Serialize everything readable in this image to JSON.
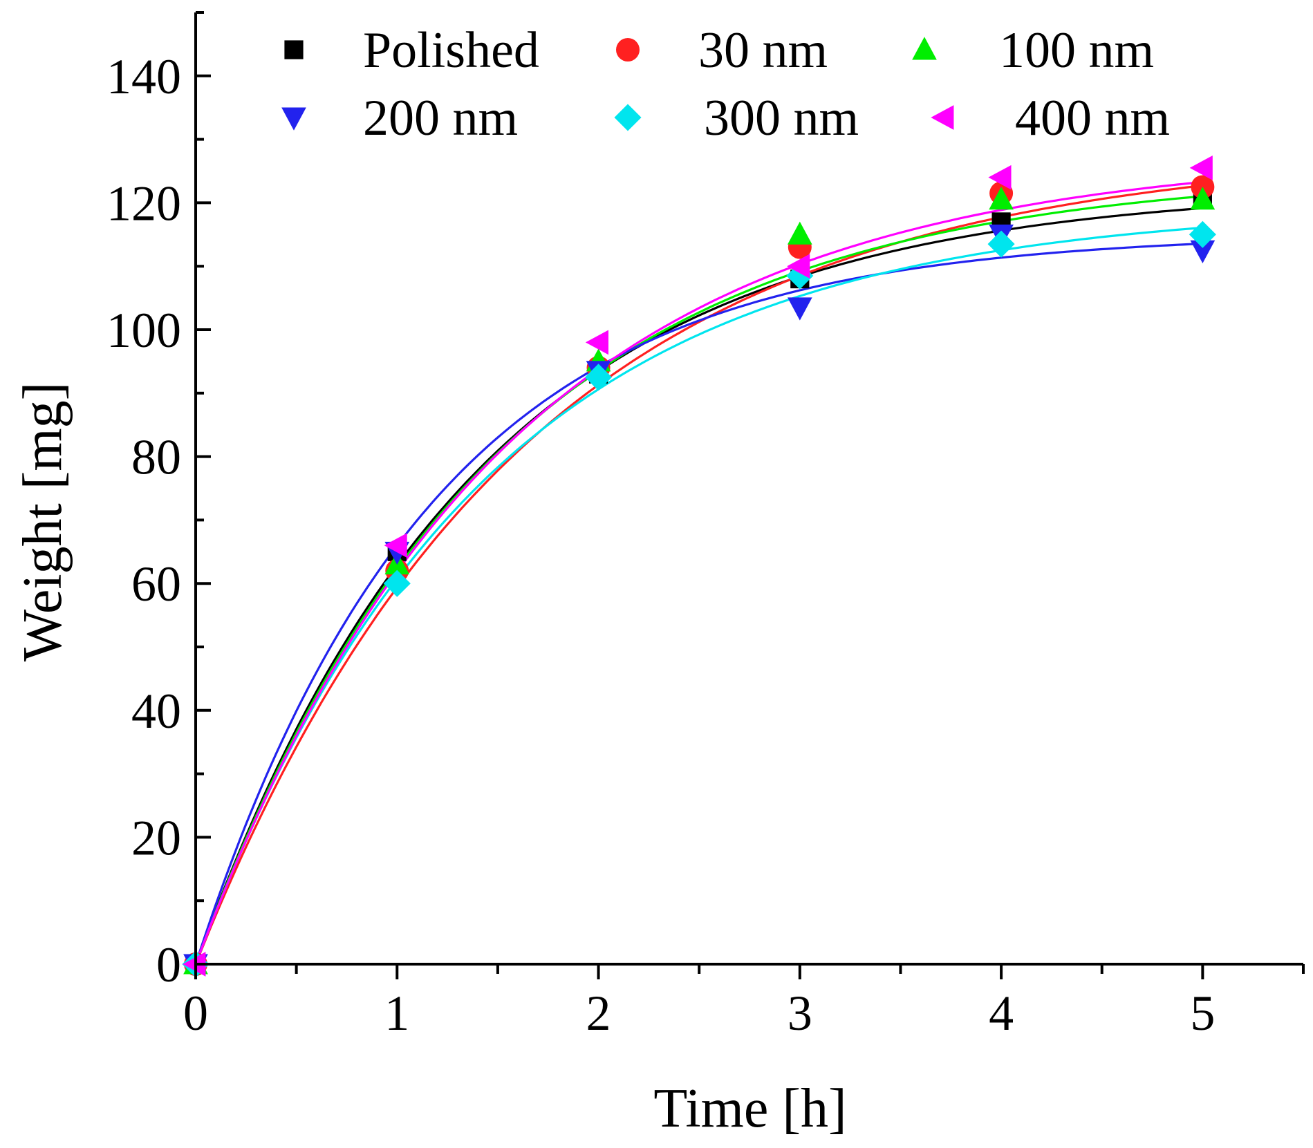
{
  "chart_data": {
    "type": "scatter",
    "title": "",
    "xlabel": "Time [h]",
    "ylabel": "Weight [mg]",
    "xlim": [
      0,
      5.5
    ],
    "ylim": [
      0,
      150
    ],
    "xticks": [
      0,
      1,
      2,
      3,
      4,
      5
    ],
    "yticks": [
      0,
      20,
      40,
      60,
      80,
      100,
      120,
      140
    ],
    "grid": false,
    "legend_position": "top",
    "fit_model": "a*(1-exp(-k*t))",
    "series": [
      {
        "name": "Polished",
        "color": "#000000",
        "marker": "square",
        "x": [
          0,
          1,
          2,
          3,
          4,
          5
        ],
        "y": [
          0,
          65,
          93,
          108,
          117,
          121
        ],
        "fit": {
          "a": 122.5,
          "k": 0.72
        }
      },
      {
        "name": "30 nm",
        "color": "#ff2020",
        "marker": "circle",
        "x": [
          0,
          1,
          2,
          3,
          4,
          5
        ],
        "y": [
          0,
          62,
          94,
          113,
          121.5,
          122.5
        ],
        "fit": {
          "a": 128.5,
          "k": 0.62
        }
      },
      {
        "name": "100 nm",
        "color": "#00ee00",
        "marker": "triangle-up",
        "x": [
          0,
          1,
          2,
          3,
          4,
          5
        ],
        "y": [
          0,
          63,
          95,
          115,
          120.5,
          120.5
        ],
        "fit": {
          "a": 125,
          "k": 0.69
        }
      },
      {
        "name": "200 nm",
        "color": "#2222ee",
        "marker": "triangle-down",
        "x": [
          0,
          1,
          2,
          3,
          4,
          5
        ],
        "y": [
          0,
          65,
          93.5,
          103.5,
          115,
          112.5
        ],
        "fit": {
          "a": 115.2,
          "k": 0.85
        }
      },
      {
        "name": "300 nm",
        "color": "#00e5ee",
        "marker": "diamond",
        "x": [
          0,
          1,
          2,
          3,
          4,
          5
        ],
        "y": [
          0,
          60,
          92.5,
          108.5,
          113.5,
          115
        ],
        "fit": {
          "a": 119.5,
          "k": 0.71
        }
      },
      {
        "name": "400 nm",
        "color": "#ff00ff",
        "marker": "triangle-left",
        "x": [
          0,
          1,
          2,
          3,
          4,
          5
        ],
        "y": [
          0,
          66,
          98,
          110,
          124,
          125.5
        ],
        "fit": {
          "a": 128,
          "k": 0.66
        }
      }
    ]
  }
}
